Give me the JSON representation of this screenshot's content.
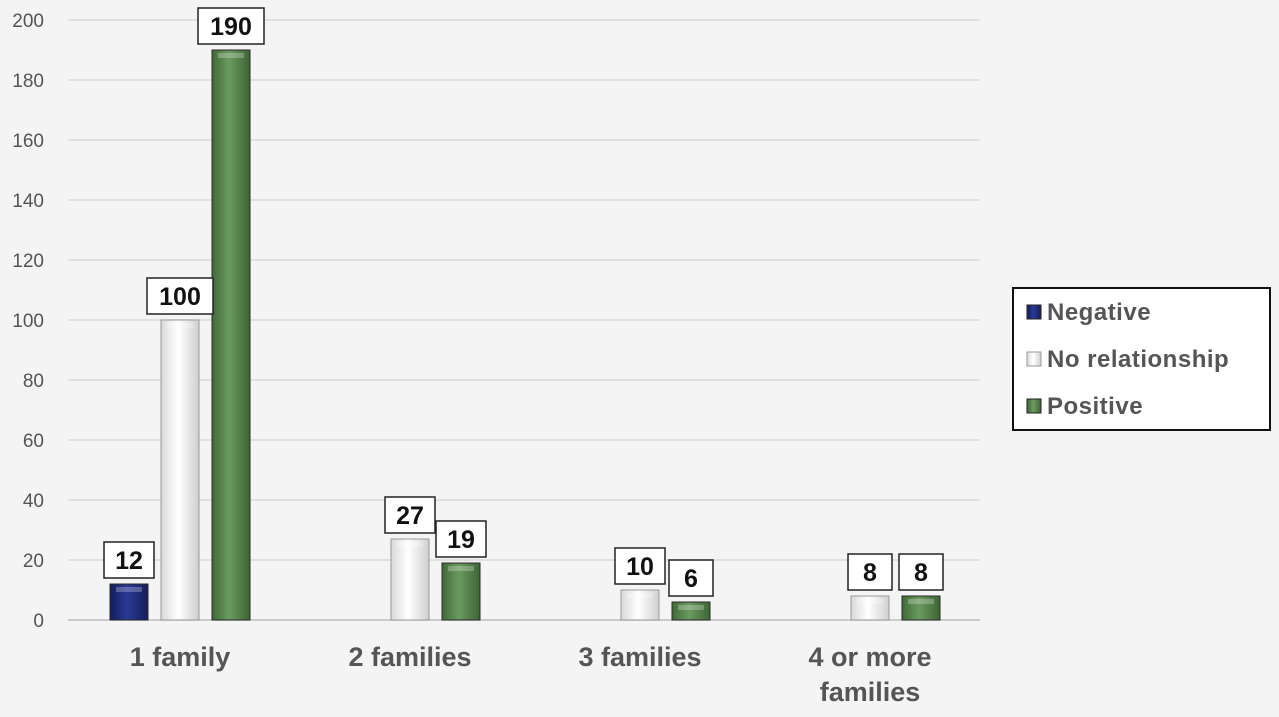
{
  "chart_data": {
    "type": "bar",
    "categories": [
      [
        "1 family"
      ],
      [
        "2 families"
      ],
      [
        "3 families"
      ],
      [
        "4 or more",
        "families"
      ]
    ],
    "series": [
      {
        "name": "Negative",
        "values": [
          12,
          null,
          null,
          null
        ],
        "color": "#1f2a7a"
      },
      {
        "name": "No relationship",
        "values": [
          100,
          27,
          10,
          8
        ],
        "color": "#ffffff"
      },
      {
        "name": "Positive",
        "values": [
          190,
          19,
          6,
          8
        ],
        "color": "#4f7f45"
      }
    ],
    "ylim": [
      0,
      200
    ],
    "yticks": [
      0,
      20,
      40,
      60,
      80,
      100,
      120,
      140,
      160,
      180,
      200
    ],
    "grid": true,
    "legend_position": "right",
    "title": "",
    "xlabel": "",
    "ylabel": ""
  }
}
